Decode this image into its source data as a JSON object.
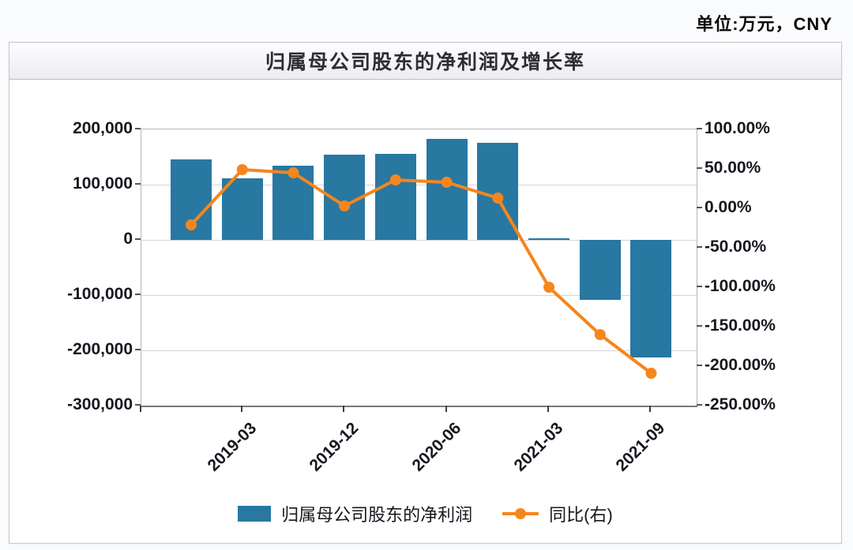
{
  "page": {
    "units_label": "单位:万元，CNY"
  },
  "panel": {
    "title": "归属母公司股东的净利润及增长率"
  },
  "legend": {
    "items": [
      {
        "label": "归属母公司股东的净利润",
        "marker": "bar-swatch",
        "color": "#2878a2"
      },
      {
        "label": "同比(右)",
        "marker": "line-dot",
        "color": "#f5861c"
      }
    ]
  },
  "chart_data": {
    "type": "bar+line",
    "title": "归属母公司股东的净利润及增长率",
    "unit_note": "单位:万元，CNY",
    "bar_count": 10,
    "x_ticks": [
      {
        "label": "2019-03",
        "bar_index": 1
      },
      {
        "label": "2019-12",
        "bar_index": 3
      },
      {
        "label": "2020-06",
        "bar_index": 5
      },
      {
        "label": "2021-03",
        "bar_index": 7
      },
      {
        "label": "2021-09",
        "bar_index": 9
      }
    ],
    "series": [
      {
        "name": "归属母公司股东的净利润",
        "type": "bar",
        "axis": "left",
        "color": "#2878a2",
        "values": [
          146000,
          112000,
          135000,
          154000,
          156000,
          183000,
          176000,
          3000,
          -108000,
          -213000
        ]
      },
      {
        "name": "同比(右)",
        "type": "line",
        "axis": "right",
        "color": "#f5861c",
        "values": [
          -21,
          49,
          45,
          3,
          36,
          33,
          13,
          -100,
          -160,
          -209
        ]
      }
    ],
    "left_axis": {
      "min": -300000,
      "max": 200000,
      "step": 100000,
      "tick_labels": [
        "200,000",
        "100,000",
        "0",
        "-100,000",
        "-200,000",
        "-300,000"
      ]
    },
    "right_axis": {
      "min": -250,
      "max": 100,
      "step": 50,
      "tick_labels": [
        "100.00%",
        "50.00%",
        "0.00%",
        "-50.00%",
        "-100.00%",
        "-150.00%",
        "-200.00%",
        "-250.00%"
      ]
    },
    "grid": true,
    "legend_position": "bottom"
  }
}
